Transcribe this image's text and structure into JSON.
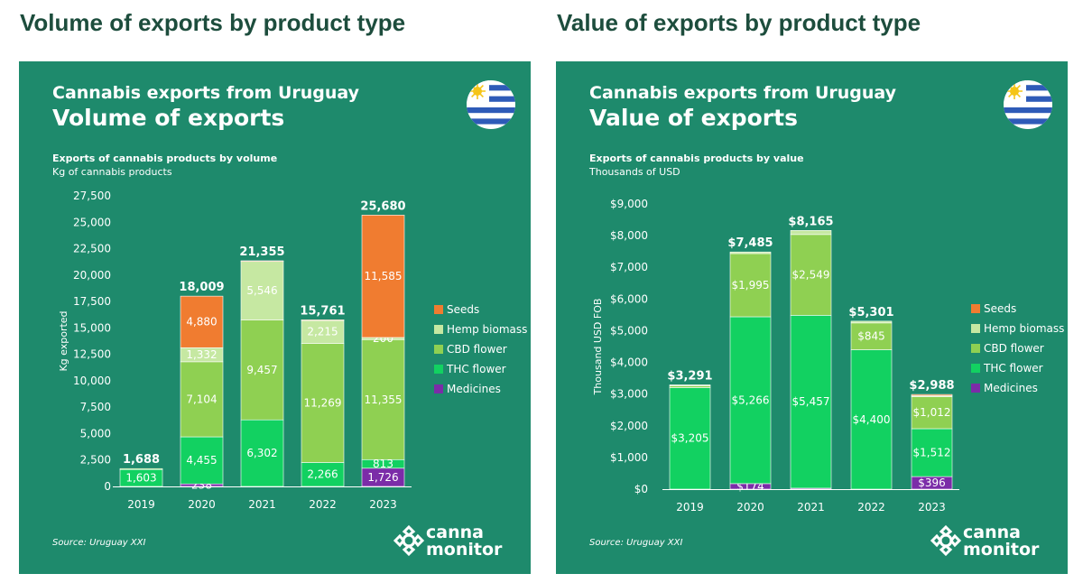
{
  "left_heading": "Volume of exports by product type",
  "right_heading": "Value of exports by product type",
  "colors": {
    "page_heading": "#1d4d3d",
    "card_bg": "#1e8a6c",
    "seeds": "#f07c30",
    "hemp_biomass": "#c6e8a2",
    "cbd_flower": "#8fd052",
    "thc_flower": "#12d161",
    "medicines": "#7b2ca8"
  },
  "icons": [
    "uruguay-flag-icon",
    "cannamonitor-logo-icon"
  ],
  "brand": {
    "line1": "canna",
    "line2": "monitor"
  },
  "cards": [
    {
      "kicker": "Cannabis exports from Uruguay",
      "title": "Volume of exports",
      "subtitle": "Exports of cannabis products by volume",
      "subtitle2": "Kg of cannabis products",
      "source": "Source: Uruguay XXI"
    },
    {
      "kicker": "Cannabis exports from Uruguay",
      "title": "Value of exports",
      "subtitle": "Exports of cannabis products by value",
      "subtitle2": "Thousands of USD",
      "source": "Source: Uruguay XXI"
    }
  ],
  "chart_data": [
    {
      "type": "bar",
      "stacked": true,
      "categories": [
        "2019",
        "2020",
        "2021",
        "2022",
        "2023"
      ],
      "ylabel": "Kg exported",
      "xlabel": "",
      "ylim": [
        0,
        27500
      ],
      "yticks": [
        0,
        2500,
        5000,
        7500,
        10000,
        12500,
        15000,
        17500,
        20000,
        22500,
        25000,
        27500
      ],
      "ytick_labels": [
        "0",
        "2,500",
        "5,000",
        "7,500",
        "10,000",
        "12,500",
        "15,000",
        "17,500",
        "20,000",
        "22,500",
        "25,000",
        "27,500"
      ],
      "legend_position": "right",
      "series": [
        {
          "name": "Medicines",
          "color": "#7b2ca8",
          "values": [
            0,
            238,
            0,
            0,
            1726
          ],
          "labels": [
            "",
            "238",
            "",
            "",
            "1,726"
          ]
        },
        {
          "name": "THC flower",
          "color": "#12d161",
          "values": [
            1603,
            4455,
            6302,
            2266,
            813
          ],
          "labels": [
            "1,603",
            "4,455",
            "6,302",
            "2,266",
            "813"
          ]
        },
        {
          "name": "CBD flower",
          "color": "#8fd052",
          "values": [
            85,
            7104,
            9457,
            11269,
            11355
          ],
          "labels": [
            "",
            "7,104",
            "9,457",
            "11,269",
            "11,355"
          ]
        },
        {
          "name": "Hemp biomass",
          "color": "#c6e8a2",
          "values": [
            0,
            1332,
            5546,
            2215,
            200
          ],
          "labels": [
            "",
            "1,332",
            "5,546",
            "2,215",
            "200"
          ]
        },
        {
          "name": "Seeds",
          "color": "#f07c30",
          "values": [
            0,
            4880,
            50,
            11,
            11585
          ],
          "labels": [
            "",
            "4,880",
            "",
            "",
            "11,585"
          ]
        }
      ],
      "totals": [
        "1,688",
        "18,009",
        "21,355",
        "15,761",
        "25,680"
      ],
      "legend": [
        {
          "name": "Seeds",
          "color": "#f07c30"
        },
        {
          "name": "Hemp biomass",
          "color": "#c6e8a2"
        },
        {
          "name": "CBD flower",
          "color": "#8fd052"
        },
        {
          "name": "THC flower",
          "color": "#12d161"
        },
        {
          "name": "Medicines",
          "color": "#7b2ca8"
        }
      ]
    },
    {
      "type": "bar",
      "stacked": true,
      "categories": [
        "2019",
        "2020",
        "2021",
        "2022",
        "2023"
      ],
      "ylabel": "Thousand USD FOB",
      "xlabel": "",
      "ylim": [
        0,
        9000
      ],
      "yticks": [
        0,
        1000,
        2000,
        3000,
        4000,
        5000,
        6000,
        7000,
        8000,
        9000
      ],
      "ytick_labels": [
        "$0",
        "$1,000",
        "$2,000",
        "$3,000",
        "$4,000",
        "$5,000",
        "$6,000",
        "$7,000",
        "$8,000",
        "$9,000"
      ],
      "legend_position": "right",
      "series": [
        {
          "name": "Medicines",
          "color": "#7b2ca8",
          "values": [
            0,
            174,
            30,
            0,
            396
          ],
          "labels": [
            "",
            "$174",
            "",
            "",
            "$396"
          ]
        },
        {
          "name": "THC flower",
          "color": "#12d161",
          "values": [
            3205,
            5266,
            5457,
            4400,
            1512
          ],
          "labels": [
            "$3,205",
            "$5,266",
            "$5,457",
            "$4,400",
            "$1,512"
          ]
        },
        {
          "name": "CBD flower",
          "color": "#8fd052",
          "values": [
            56,
            1995,
            2549,
            845,
            1012
          ],
          "labels": [
            "",
            "$1,995",
            "$2,549",
            "$845",
            "$1,012"
          ]
        },
        {
          "name": "Hemp biomass",
          "color": "#c6e8a2",
          "values": [
            30,
            50,
            129,
            56,
            28
          ],
          "labels": [
            "",
            "",
            "",
            "",
            ""
          ]
        },
        {
          "name": "Seeds",
          "color": "#f07c30",
          "values": [
            0,
            0,
            0,
            0,
            40
          ],
          "labels": [
            "",
            "",
            "",
            "",
            ""
          ]
        }
      ],
      "totals": [
        "$3,291",
        "$7,485",
        "$8,165",
        "$5,301",
        "$2,988"
      ],
      "legend": [
        {
          "name": "Seeds",
          "color": "#f07c30"
        },
        {
          "name": "Hemp biomass",
          "color": "#c6e8a2"
        },
        {
          "name": "CBD flower",
          "color": "#8fd052"
        },
        {
          "name": "THC flower",
          "color": "#12d161"
        },
        {
          "name": "Medicines",
          "color": "#7b2ca8"
        }
      ]
    }
  ]
}
